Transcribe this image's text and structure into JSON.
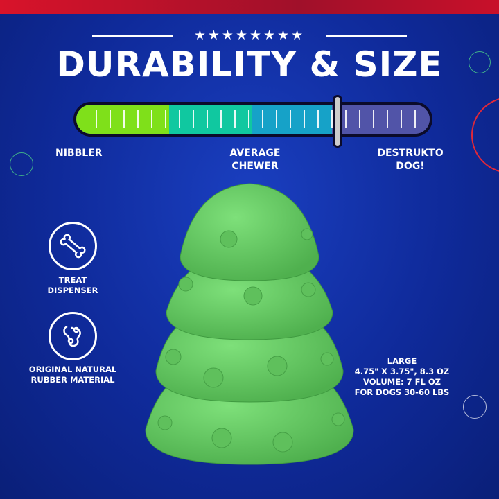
{
  "header": {
    "stars": "★★★★★★★★",
    "title": "DURABILITY & SIZE"
  },
  "gauge": {
    "level_percent": 74,
    "labels": {
      "low": "NIBBLER",
      "mid_line1": "AVERAGE",
      "mid_line2": "CHEWER",
      "high_line1": "DESTRUKTO",
      "high_line2": "DOG!"
    },
    "colors": {
      "green": "#7fe01a",
      "teal": "#10c8a0",
      "blue": "#16a2c8",
      "purple": "#5154a8"
    }
  },
  "features": [
    {
      "icon": "bone-icon",
      "line1": "TREAT",
      "line2": "DISPENSER"
    },
    {
      "icon": "rubber-material-icon",
      "line1": "ORIGINAL NATURAL",
      "line2": "RUBBER MATERIAL"
    }
  ],
  "specs": {
    "size": "LARGE",
    "dimensions": "4.75\" X 3.75\", 8.3 OZ",
    "volume": "VOLUME: 7 FL OZ",
    "dogs": "FOR DOGS 30-60 LBS"
  },
  "product": {
    "color": "#6ed36a"
  }
}
